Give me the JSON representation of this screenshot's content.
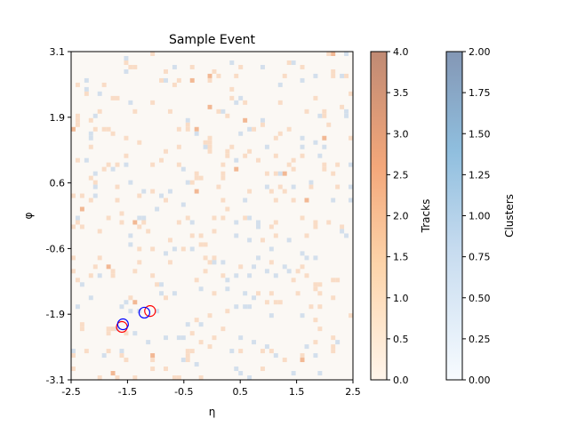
{
  "chart_data": {
    "type": "heatmap",
    "title": "Sample Event",
    "xlabel": "η",
    "ylabel": "φ",
    "xlim": [
      -2.5,
      2.5
    ],
    "ylim": [
      -3.1,
      3.1
    ],
    "x_ticks": [
      "-2.5",
      "-1.5",
      "-0.5",
      "0.5",
      "1.5",
      "2.5"
    ],
    "y_ticks": [
      "-3.1",
      "-1.9",
      "-0.6",
      "0.6",
      "1.9",
      "3.1"
    ],
    "grid": false,
    "layers": [
      {
        "name": "Tracks",
        "colormap": "Oranges",
        "alpha": 0.5,
        "range": [
          0,
          4
        ]
      },
      {
        "name": "Clusters",
        "colormap": "Blues",
        "alpha": 0.5,
        "range": [
          0,
          2
        ]
      }
    ],
    "colorbars": [
      {
        "label": "Tracks",
        "ticks": [
          "0.0",
          "0.5",
          "1.0",
          "1.5",
          "2.0",
          "2.5",
          "3.0",
          "3.5",
          "4.0"
        ],
        "low_color": "#fff5eb",
        "high_color": "#c08a74"
      },
      {
        "label": "Clusters",
        "ticks": [
          "0.00",
          "0.25",
          "0.50",
          "0.75",
          "1.00",
          "1.25",
          "1.50",
          "1.75",
          "2.00"
        ],
        "low_color": "#f7fbff",
        "high_color": "#8497b5"
      }
    ],
    "circles": [
      {
        "eta": -1.6,
        "phi": -2.1,
        "color": "red"
      },
      {
        "eta": -1.58,
        "phi": -2.05,
        "color": "blue"
      },
      {
        "eta": -1.1,
        "phi": -1.8,
        "color": "red"
      },
      {
        "eta": -1.2,
        "phi": -1.83,
        "color": "blue"
      }
    ],
    "colors": {
      "background": "#fbf8f4",
      "track_cell": "#f9dcc6",
      "cluster_cell": "#d3dfec",
      "spine": "#000000"
    }
  }
}
